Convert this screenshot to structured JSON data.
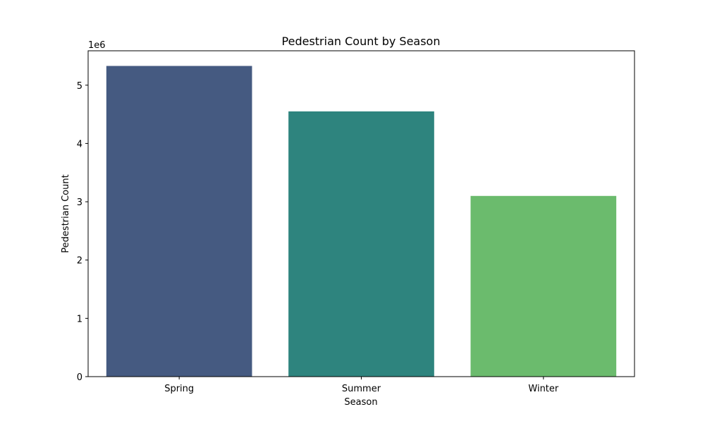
{
  "chart_data": {
    "type": "bar",
    "title": "Pedestrian Count by Season",
    "xlabel": "Season",
    "ylabel": "Pedestrian Count",
    "y_offset_label": "1e6",
    "categories": [
      "Spring",
      "Summer",
      "Winter"
    ],
    "values": [
      5330000,
      4550000,
      3100000
    ],
    "colors": [
      "#455a81",
      "#2e847e",
      "#6bbb6d"
    ],
    "ylim": [
      0,
      5590000
    ],
    "yticks": [
      0,
      1000000,
      2000000,
      3000000,
      4000000,
      5000000
    ],
    "ytick_labels": [
      "0",
      "1",
      "2",
      "3",
      "4",
      "5"
    ],
    "grid": false,
    "legend": false
  }
}
